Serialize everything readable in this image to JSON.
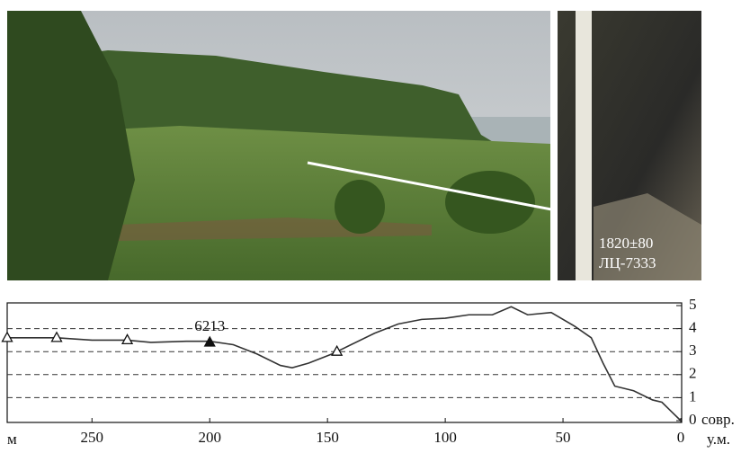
{
  "photo_labels": {
    "date": "1820±80",
    "lab_code": "ЛЦ-7333"
  },
  "chart_data": {
    "type": "line",
    "x_unit": "м",
    "y_unit_top": "совр.",
    "y_unit_bottom": "у.м.",
    "xlim": [
      286,
      0
    ],
    "xticks": [
      250,
      200,
      150,
      100,
      50,
      0
    ],
    "ylim": [
      0,
      5
    ],
    "yticks": [
      0,
      1,
      2,
      3,
      4,
      5
    ],
    "grid": true,
    "series": [
      {
        "color": "#333333",
        "x": [
          286,
          275,
          265,
          250,
          235,
          225,
          210,
          200,
          190,
          180,
          170,
          165,
          158,
          148,
          140,
          130,
          120,
          110,
          100,
          90,
          80,
          72,
          65,
          55,
          45,
          38,
          33,
          28,
          20,
          12,
          8,
          4,
          0
        ],
        "values": [
          3.6,
          3.6,
          3.6,
          3.5,
          3.5,
          3.4,
          3.45,
          3.45,
          3.3,
          2.9,
          2.4,
          2.3,
          2.5,
          2.9,
          3.3,
          3.8,
          4.2,
          4.4,
          4.45,
          4.6,
          4.6,
          4.95,
          4.6,
          4.7,
          4.1,
          3.6,
          2.5,
          1.5,
          1.3,
          0.9,
          0.8,
          0.4,
          0
        ]
      }
    ],
    "markers": [
      {
        "x": 286,
        "y": 3.6,
        "filled": false
      },
      {
        "x": 265,
        "y": 3.6,
        "filled": false
      },
      {
        "x": 235,
        "y": 3.5,
        "filled": false
      },
      {
        "x": 200,
        "y": 3.4,
        "filled": true,
        "label": "6213"
      },
      {
        "x": 146,
        "y": 3.0,
        "filled": false
      }
    ]
  }
}
